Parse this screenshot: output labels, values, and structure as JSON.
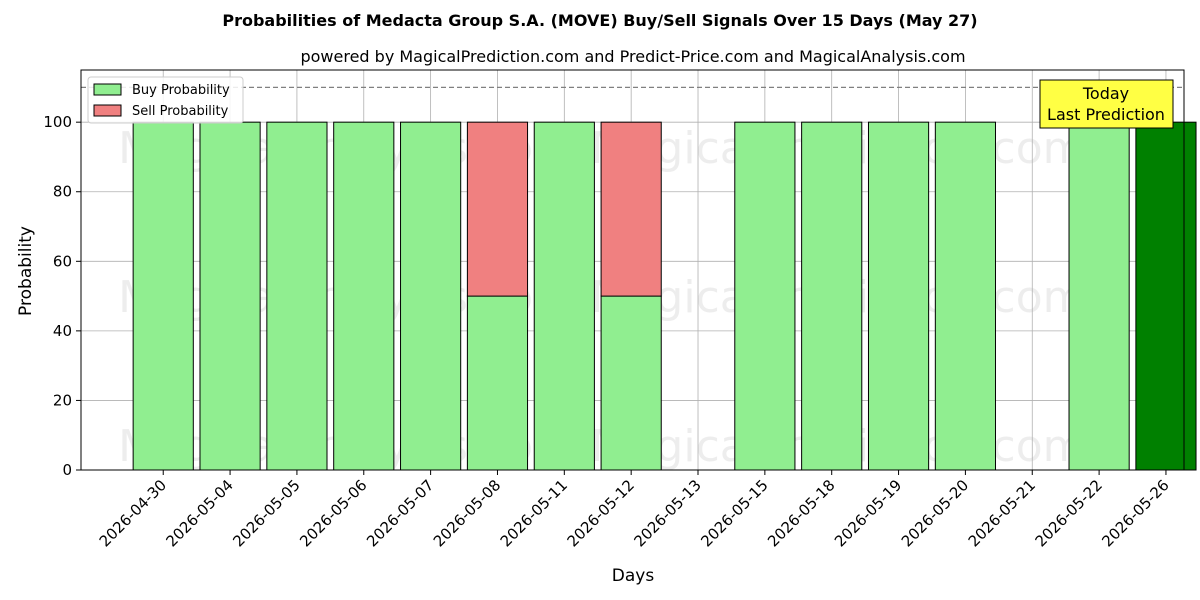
{
  "chart_data": {
    "type": "bar",
    "stacked": true,
    "title": "Probabilities of Medacta Group S.A. (MOVE) Buy/Sell Signals Over 15 Days (May 27)",
    "subtitle": "powered by MagicalPrediction.com and Predict-Price.com and MagicalAnalysis.com",
    "xlabel": "Days",
    "ylabel": "Probability",
    "ylim": [
      0,
      115
    ],
    "yticks": [
      0,
      20,
      40,
      60,
      80,
      100
    ],
    "grid": true,
    "legend_position": "top-left",
    "reference_line": 110,
    "categories": [
      "2026-04-30",
      "2026-05-04",
      "2026-05-05",
      "2026-05-06",
      "2026-05-07",
      "2026-05-08",
      "2026-05-11",
      "2026-05-12",
      "2026-05-13",
      "2026-05-15",
      "2026-05-18",
      "2026-05-19",
      "2026-05-20",
      "2026-05-21",
      "2026-05-22",
      "2026-05-26"
    ],
    "series": [
      {
        "name": "Buy Probability",
        "color": "#90ee90",
        "values": [
          100,
          100,
          100,
          100,
          100,
          50,
          100,
          50,
          0,
          100,
          100,
          100,
          100,
          0,
          100,
          100
        ]
      },
      {
        "name": "Sell Probability",
        "color": "#f08080",
        "values": [
          0,
          0,
          0,
          0,
          0,
          50,
          0,
          50,
          0,
          0,
          0,
          0,
          0,
          0,
          0,
          0
        ]
      }
    ],
    "highlight": {
      "category": "2026-05-26",
      "color": "#008000"
    },
    "annotation": {
      "line1": "Today",
      "line2": "Last Prediction",
      "color": "#ffff44"
    },
    "watermarks": [
      "MagicalAnalysis.com",
      "MagicalPrediction.com"
    ]
  }
}
